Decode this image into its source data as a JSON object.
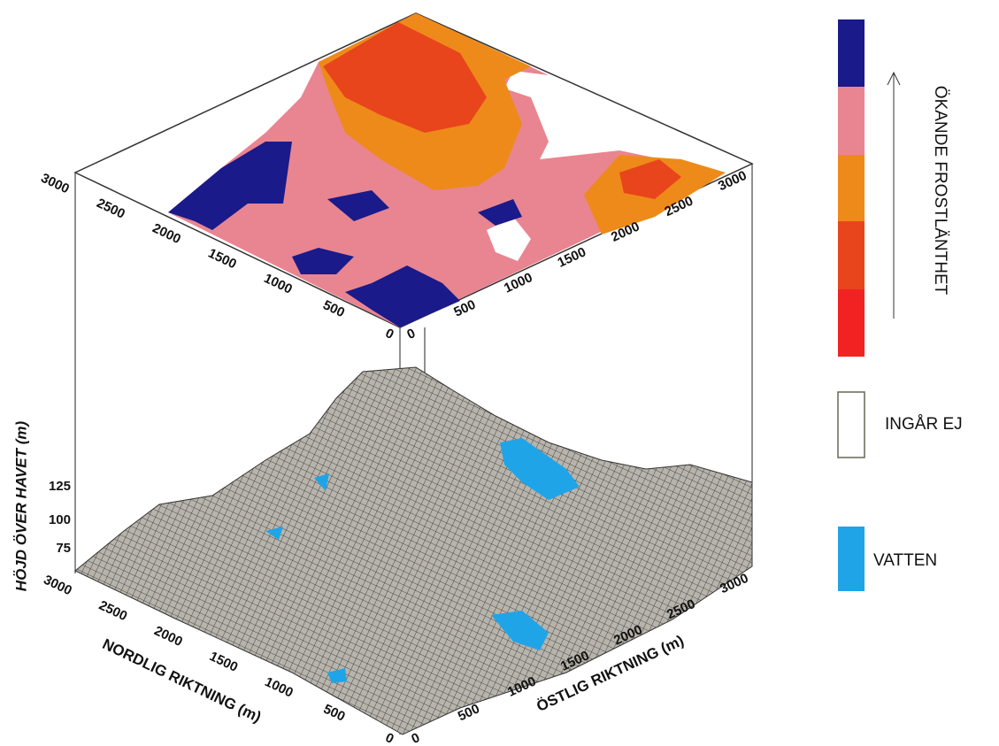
{
  "top_map": {
    "left_ticks": [
      "0",
      "500",
      "1000",
      "1500",
      "2000",
      "2500",
      "3000"
    ],
    "right_ticks": [
      "0",
      "500",
      "1000",
      "1500",
      "2000",
      "2500",
      "3000"
    ]
  },
  "surface": {
    "z_axis_label": "HÖJD ÖVER HAVET (m)",
    "z_ticks": [
      "75",
      "100",
      "125"
    ],
    "y_axis_label": "NORDLIG RIKTNING (m)",
    "y_ticks": [
      "0",
      "500",
      "1000",
      "1500",
      "2000",
      "2500",
      "3000"
    ],
    "x_axis_label": "ÖSTLIG RIKTNING (m)",
    "x_ticks": [
      "0",
      "500",
      "1000",
      "1500",
      "2000",
      "2500",
      "3000"
    ]
  },
  "legend": {
    "scale_label": "ÖKANDE FROSTLÄNTHET",
    "excluded_label": "INGÅR EJ",
    "water_label": "VATTEN"
  }
}
